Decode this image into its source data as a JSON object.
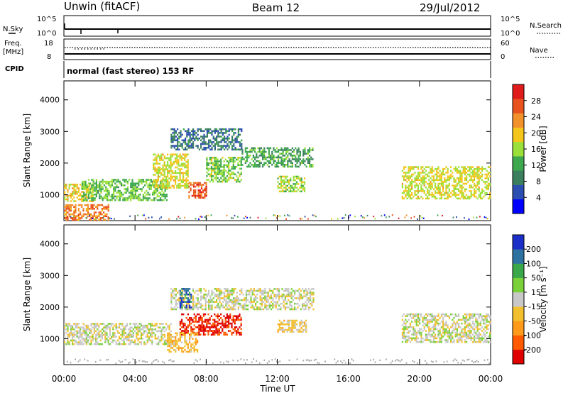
{
  "header": {
    "station": "Unwin (fitACF)",
    "beam": "Beam 12",
    "date": "29/Jul/2012"
  },
  "top_panels": {
    "nsky": {
      "label": "N.Sky",
      "ticks": [
        "10^5",
        "10^0"
      ],
      "right_label": "N.Search",
      "right_ticks": [
        "10^5",
        "10^0"
      ]
    },
    "freq": {
      "label_line1": "Freq.",
      "label_line2": "[MHz]",
      "ticks": [
        "18",
        "8"
      ],
      "right_label": "Nave",
      "right_ticks": [
        "60",
        "0"
      ]
    },
    "cpid": {
      "label": "CPID",
      "text": "normal (fast stereo) 153 RF"
    }
  },
  "colors": {
    "power": [
      "#0000ff",
      "#2b4fb0",
      "#3b7f5f",
      "#3ea84f",
      "#9be03a",
      "#f4c61b",
      "#f2902a",
      "#e8521e",
      "#e01b1b"
    ],
    "velocity": [
      "#e00000",
      "#ff5a00",
      "#ff9a1a",
      "#f2c02e",
      "#c8c8c8",
      "#7bd13a",
      "#3aa84a",
      "#2d72a0",
      "#1b2fc8"
    ],
    "ground": "#a8a8a8"
  },
  "chart_data": [
    {
      "type": "heatmap",
      "title": "Power",
      "xlabel": "",
      "ylabel": "Slant Range [km]",
      "xlim_hours": [
        0,
        24
      ],
      "ylim": [
        180,
        4600
      ],
      "yticks": [
        1000,
        2000,
        3000,
        4000
      ],
      "colorbar": {
        "label": "Power [dB]",
        "range": [
          0,
          32
        ],
        "ticks": [
          "4",
          "8",
          "12",
          "16",
          "20",
          "24",
          "28"
        ]
      },
      "regions": [
        {
          "t": [
            0.0,
            1.6
          ],
          "r": [
            800,
            1350
          ],
          "v": 19
        },
        {
          "t": [
            1.0,
            5.8
          ],
          "r": [
            850,
            1500
          ],
          "v": 14
        },
        {
          "t": [
            0.0,
            2.5
          ],
          "r": [
            200,
            700
          ],
          "v": 24
        },
        {
          "t": [
            5.0,
            7.0
          ],
          "r": [
            1200,
            2300
          ],
          "v": 18
        },
        {
          "t": [
            7.0,
            8.0
          ],
          "r": [
            900,
            1400
          ],
          "v": 26
        },
        {
          "t": [
            8.0,
            10.0
          ],
          "r": [
            1400,
            2200
          ],
          "v": 15
        },
        {
          "t": [
            10.0,
            14.0
          ],
          "r": [
            1900,
            2500
          ],
          "v": 12
        },
        {
          "t": [
            6.0,
            10.0
          ],
          "r": [
            2400,
            3100
          ],
          "v": 8
        },
        {
          "t": [
            12.0,
            13.5
          ],
          "r": [
            1100,
            1600
          ],
          "v": 16
        },
        {
          "t": [
            19.0,
            24.0
          ],
          "r": [
            900,
            1900
          ],
          "v": 18
        }
      ]
    },
    {
      "type": "heatmap",
      "title": "Velocity",
      "xlabel": "Time UT",
      "ylabel": "Slant Range [km]",
      "xlim_hours": [
        0,
        24
      ],
      "ylim": [
        180,
        4600
      ],
      "xticks": [
        "00:00",
        "04:00",
        "08:00",
        "12:00",
        "16:00",
        "20:00",
        "00:00"
      ],
      "yticks": [
        1000,
        2000,
        3000,
        4000
      ],
      "colorbar": {
        "label": "Velocity [m s⁻¹]",
        "range": [
          -250,
          250
        ],
        "ticks": [
          "-200",
          "-100",
          "-50",
          "-15",
          "15",
          "50",
          "100",
          "200"
        ]
      },
      "regions": [
        {
          "t": [
            0.0,
            6.0
          ],
          "r": [
            800,
            1500
          ],
          "v": -5
        },
        {
          "t": [
            6.5,
            10.0
          ],
          "r": [
            1100,
            1800
          ],
          "v": -210
        },
        {
          "t": [
            5.8,
            7.5
          ],
          "r": [
            600,
            1200
          ],
          "v": -70
        },
        {
          "t": [
            12.0,
            13.6
          ],
          "r": [
            1200,
            1600
          ],
          "v": -40
        },
        {
          "t": [
            6.0,
            14.0
          ],
          "r": [
            1900,
            2600
          ],
          "v": 0
        },
        {
          "t": [
            19.0,
            24.0
          ],
          "r": [
            900,
            1800
          ],
          "v": 0
        },
        {
          "t": [
            6.5,
            7.2
          ],
          "r": [
            2000,
            2600
          ],
          "v": 180
        }
      ]
    }
  ]
}
